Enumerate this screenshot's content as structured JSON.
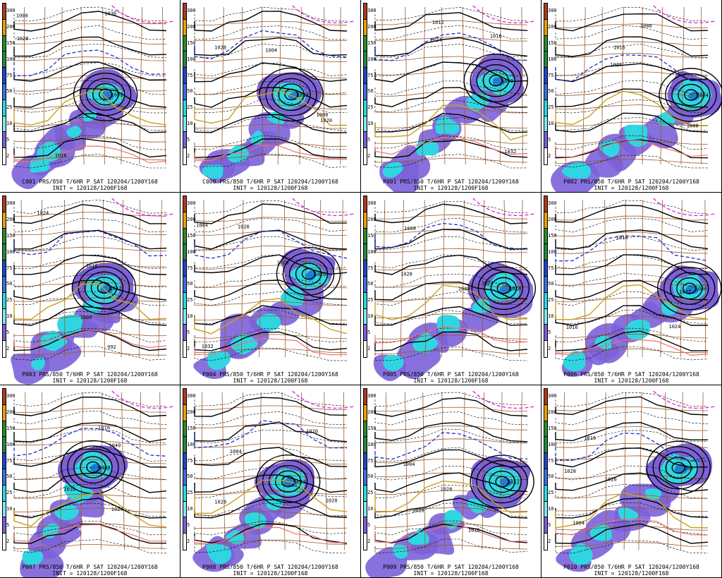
{
  "figure": {
    "legend_levels": [
      "300",
      "200",
      "150",
      "100",
      "75",
      "50",
      "25",
      "10",
      "5",
      "2"
    ],
    "legend_colors": [
      "#b03a1c",
      "#e8a000",
      "#2a8a2a",
      "#1f8a3a",
      "#2244cc",
      "#3a6fe0",
      "#2ad8e0",
      "#7fe8f0",
      "#7a5fd8",
      "#ffffff"
    ],
    "init_line": "INIT = 120128/1200F168",
    "colors": {
      "precip_light": "#7b62d9",
      "precip_med": "#2fd6e2",
      "precip_heavy": "#1c7fd6",
      "isobar": "#000000",
      "thickness_dash": "#000000",
      "freezing_blue": "#1a2fd0",
      "warm_magenta": "#e020e0",
      "warm_red": "#f07070",
      "gold": "#c8a020",
      "borders": "#9a5a2a"
    },
    "panels": [
      {
        "id": "C001",
        "title": "C001 PRS/850 T/6HR P SAT 120204/1200Y168",
        "labels": [
          "1036",
          "1028",
          "1016",
          "1032",
          "1008"
        ]
      },
      {
        "id": "C000",
        "title": "C000 PRS/850 T/6HR P SAT 120204/1200Y168",
        "labels": [
          "1020",
          "1028",
          "1004",
          "1012",
          "1008"
        ]
      },
      {
        "id": "P001",
        "title": "P001 PRS/850 T/6HR P SAT 120204/1200Y168",
        "labels": [
          "1016",
          "1032",
          "1024",
          "1000",
          "1012"
        ]
      },
      {
        "id": "P002",
        "title": "P002 PRS/850 T/6HR P SAT 120204/1200Y168",
        "labels": [
          "1016",
          "1024",
          "1008",
          "1024",
          "1000"
        ]
      },
      {
        "id": "P003",
        "title": "P003 PRS/850 T/6HR P SAT 120204/1200Y168",
        "labels": [
          "992",
          "1016",
          "1024",
          "1032",
          "1008"
        ]
      },
      {
        "id": "P004",
        "title": "P004 PRS/850 T/6HR P SAT 120204/1200Y168",
        "labels": [
          "1020",
          "1028",
          "1032",
          "1028",
          "1004"
        ]
      },
      {
        "id": "P005",
        "title": "P005 PRS/850 T/6HR P SAT 120204/1200Y168",
        "labels": [
          "1028",
          "1024",
          "1008",
          "1016",
          "1000"
        ]
      },
      {
        "id": "P006",
        "title": "P006 PRS/850 T/6HR P SAT 120204/1200Y168",
        "labels": [
          "1016",
          "1032",
          "1024",
          "1040",
          "1016"
        ]
      },
      {
        "id": "P007",
        "title": "P007 PRS/850 T/6HR P SAT 120204/1200Y168",
        "labels": [
          "1016",
          "1040",
          "1024",
          "1008",
          "1016"
        ]
      },
      {
        "id": "P008",
        "title": "P008 PRS/850 T/6HR P SAT 120204/1200Y168",
        "labels": [
          "1020",
          "1028",
          "1004",
          "1012",
          "1020"
        ]
      },
      {
        "id": "P009",
        "title": "P009 PRS/850 T/6HR P SAT 120204/1200Y168",
        "labels": [
          "1004",
          "1020",
          "1028",
          "1012",
          "1016"
        ]
      },
      {
        "id": "P010",
        "title": "P010 PRS/850 T/6HR P SAT 120204/1200Y168",
        "labels": [
          "1004",
          "1028",
          "1020",
          "996",
          "1016"
        ]
      }
    ]
  }
}
